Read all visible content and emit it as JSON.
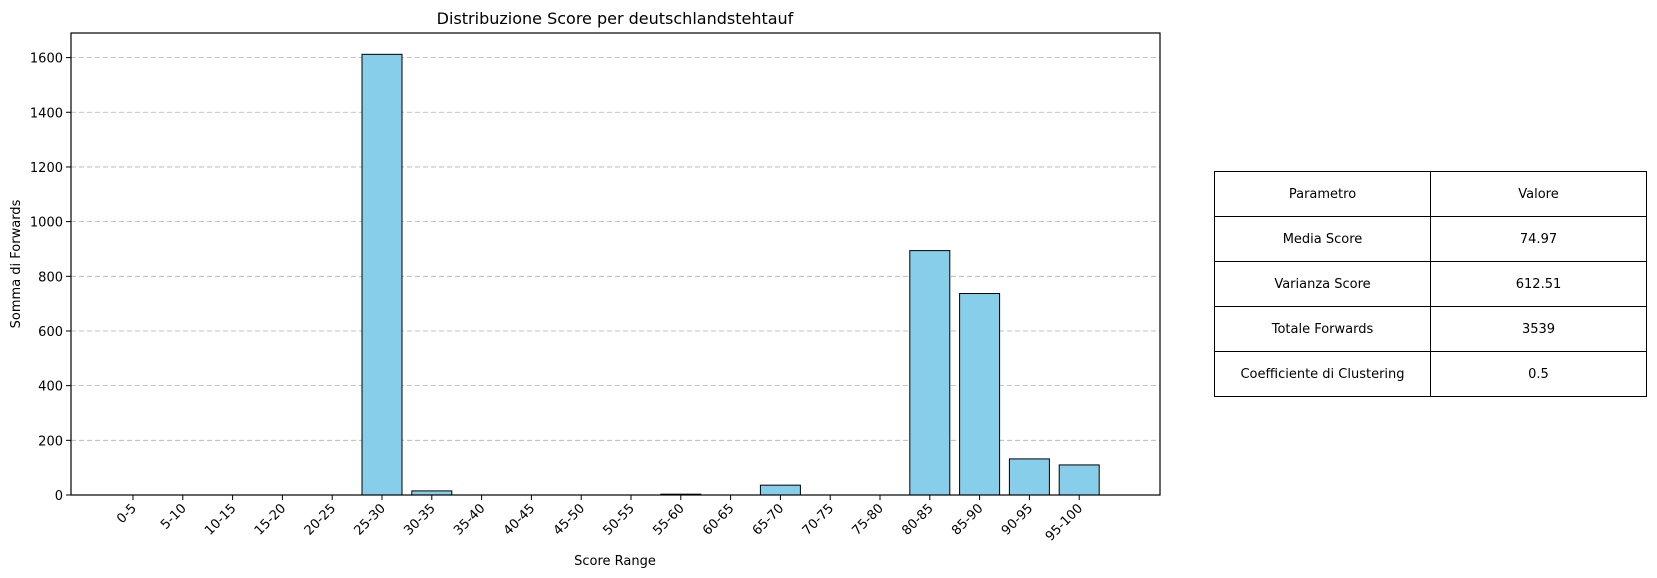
{
  "chart_data": {
    "type": "bar",
    "title": "Distribuzione Score per deutschlandstehtauf",
    "xlabel": "Score Range",
    "ylabel": "Somma di Forwards",
    "categories": [
      "0-5",
      "5-10",
      "10-15",
      "15-20",
      "20-25",
      "25-30",
      "30-35",
      "35-40",
      "40-45",
      "45-50",
      "50-55",
      "55-60",
      "60-65",
      "65-70",
      "70-75",
      "75-80",
      "80-85",
      "85-90",
      "90-95",
      "95-100"
    ],
    "values": [
      0,
      0,
      0,
      0,
      0,
      1612,
      15,
      0,
      0,
      0,
      0,
      3,
      0,
      36,
      0,
      0,
      894,
      737,
      132,
      110
    ],
    "ylim": [
      0,
      1690
    ],
    "yticks": [
      0,
      200,
      400,
      600,
      800,
      1000,
      1200,
      1400,
      1600
    ],
    "grid": "y-dashed",
    "bar_color": "#87CEEB",
    "edge_color": "#000000"
  },
  "table": {
    "header": [
      "Parametro",
      "Valore"
    ],
    "rows": [
      [
        "Media Score",
        "74.97"
      ],
      [
        "Varianza Score",
        "612.51"
      ],
      [
        "Totale Forwards",
        "3539"
      ],
      [
        "Coefficiente di Clustering",
        "0.5"
      ]
    ]
  }
}
